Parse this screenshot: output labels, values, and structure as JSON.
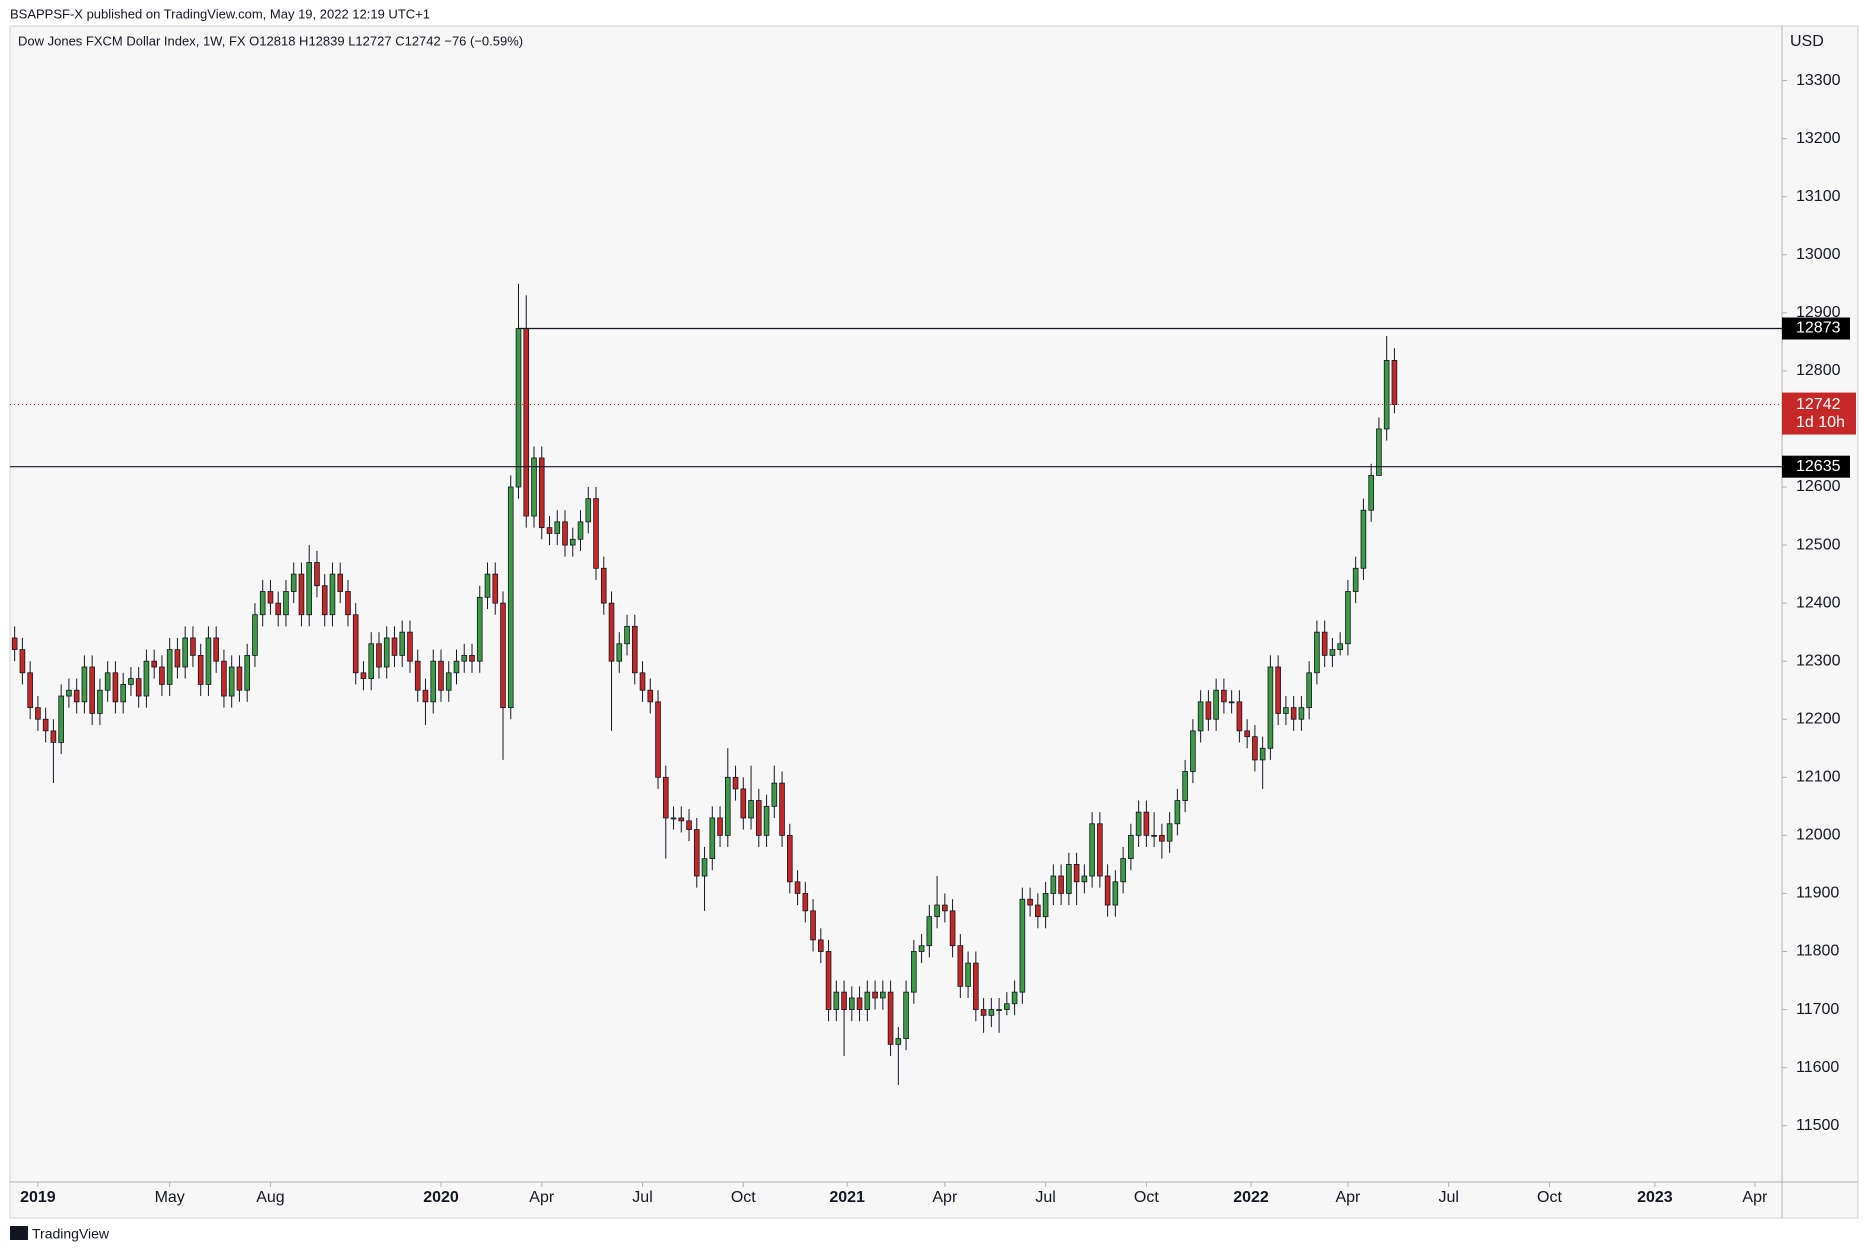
{
  "header": "BSAPPSF-X published on TradingView.com, May 19, 2022 12:19 UTC+1",
  "footer": "TradingView",
  "chart_data": {
    "type": "candlestick",
    "title": "Dow Jones FXCM Dollar Index, 1W, FX  O12818  H12839  L12727  C12742  −76 (−0.59%)",
    "y_axis_label": "USD",
    "countdown": "1d 10h",
    "up_color": "#3d9a45",
    "down_color": "#c62828",
    "open": [
      12340,
      12320,
      12280,
      12220,
      12200,
      12180,
      12160,
      12240,
      12250,
      12230,
      12290,
      12210,
      12250,
      12280,
      12230,
      12260,
      12270,
      12240,
      12300,
      12290,
      12260,
      12320,
      12290,
      12340,
      12310,
      12260,
      12340,
      12300,
      12240,
      12290,
      12250,
      12310,
      12380,
      12420,
      12400,
      12380,
      12420,
      12450,
      12380,
      12470,
      12430,
      12380,
      12450,
      12420,
      12380,
      12280,
      12270,
      12330,
      12290,
      12340,
      12310,
      12350,
      12300,
      12250,
      12230,
      12300,
      12250,
      12280,
      12300,
      12310,
      12300,
      12410,
      12450,
      12400,
      12220,
      12600,
      12873,
      12550,
      12650,
      12530,
      12520,
      12540,
      12500,
      12510,
      12540,
      12580,
      12460,
      12400,
      12300,
      12330,
      12360,
      12280,
      12250,
      12230,
      12100,
      12030,
      12030,
      12025,
      12010,
      11930,
      11960,
      12030,
      12000,
      12100,
      12080,
      12030,
      12060,
      12000,
      12050,
      12090,
      12000,
      11920,
      11900,
      11870,
      11820,
      11800,
      11700,
      11730,
      11700,
      11720,
      11700,
      11730,
      11720,
      11730,
      11640,
      11650,
      11730,
      11800,
      11810,
      11860,
      11880,
      11870,
      11810,
      11740,
      11780,
      11700,
      11690,
      11700,
      11700,
      11710,
      11730,
      11890,
      11880,
      11860,
      11900,
      11930,
      11900,
      11950,
      11920,
      11930,
      12020,
      11930,
      11880,
      11920,
      11960,
      12000,
      12040,
      12000,
      12000,
      11990,
      12020,
      12060,
      12110,
      12180,
      12230,
      12200,
      12250,
      12230,
      12230,
      12180,
      12170,
      12130,
      12150,
      12290,
      12210,
      12220,
      12200,
      12220,
      12280,
      12350,
      12310,
      12320,
      12330,
      12420,
      12460,
      12560,
      12620,
      12700,
      12818
    ],
    "high": [
      12360,
      12340,
      12300,
      12240,
      12220,
      12200,
      12260,
      12270,
      12270,
      12310,
      12310,
      12270,
      12300,
      12300,
      12280,
      12290,
      12290,
      12320,
      12320,
      12310,
      12340,
      12340,
      12360,
      12360,
      12330,
      12360,
      12360,
      12320,
      12310,
      12310,
      12330,
      12400,
      12440,
      12440,
      12420,
      12440,
      12470,
      12470,
      12500,
      12490,
      12450,
      12470,
      12470,
      12440,
      12400,
      12300,
      12350,
      12350,
      12360,
      12360,
      12370,
      12370,
      12320,
      12270,
      12320,
      12320,
      12300,
      12320,
      12330,
      12330,
      12430,
      12470,
      12470,
      12420,
      12620,
      12950,
      12930,
      12670,
      12670,
      12550,
      12560,
      12560,
      12530,
      12560,
      12600,
      12600,
      12480,
      12420,
      12350,
      12380,
      12380,
      12300,
      12270,
      12250,
      12120,
      12050,
      12050,
      12045,
      12030,
      11980,
      12050,
      12050,
      12150,
      12120,
      12100,
      12120,
      12080,
      12070,
      12120,
      12110,
      12020,
      11940,
      11920,
      11890,
      11840,
      11820,
      11750,
      11750,
      11740,
      11740,
      11750,
      11750,
      11750,
      11750,
      11670,
      11750,
      11820,
      11830,
      11880,
      11930,
      11900,
      11890,
      11830,
      11800,
      11800,
      11720,
      11720,
      11720,
      11730,
      11750,
      11910,
      11910,
      11900,
      11920,
      11950,
      11950,
      11970,
      11970,
      11950,
      12040,
      12040,
      11950,
      11940,
      11980,
      12020,
      12060,
      12060,
      12040,
      12020,
      12040,
      12080,
      12130,
      12200,
      12250,
      12250,
      12270,
      12270,
      12250,
      12250,
      12200,
      12190,
      12170,
      12310,
      12310,
      12240,
      12240,
      12240,
      12300,
      12370,
      12370,
      12340,
      12350,
      12440,
      12480,
      12580,
      12640,
      12720,
      12860,
      12839
    ],
    "low": [
      12300,
      12260,
      12200,
      12180,
      12160,
      12090,
      12140,
      12220,
      12210,
      12210,
      12190,
      12190,
      12230,
      12210,
      12210,
      12240,
      12220,
      12220,
      12270,
      12240,
      12240,
      12270,
      12270,
      12290,
      12240,
      12240,
      12280,
      12220,
      12220,
      12230,
      12230,
      12290,
      12360,
      12380,
      12360,
      12360,
      12400,
      12360,
      12360,
      12410,
      12360,
      12360,
      12400,
      12360,
      12260,
      12250,
      12250,
      12270,
      12270,
      12290,
      12290,
      12280,
      12230,
      12190,
      12210,
      12230,
      12230,
      12260,
      12280,
      12280,
      12280,
      12390,
      12380,
      12130,
      12200,
      12580,
      12530,
      12530,
      12510,
      12500,
      12500,
      12480,
      12480,
      12490,
      12520,
      12440,
      12380,
      12180,
      12280,
      12310,
      12260,
      12230,
      12210,
      12080,
      11960,
      12010,
      12005,
      11990,
      11910,
      11870,
      11940,
      11980,
      11980,
      12060,
      12010,
      12010,
      11980,
      11980,
      12030,
      11980,
      11900,
      11880,
      11850,
      11800,
      11780,
      11680,
      11680,
      11620,
      11680,
      11680,
      11680,
      11700,
      11700,
      11620,
      11570,
      11630,
      11710,
      11780,
      11790,
      11840,
      11850,
      11790,
      11720,
      11720,
      11680,
      11660,
      11670,
      11660,
      11690,
      11690,
      11710,
      11860,
      11840,
      11840,
      11880,
      11880,
      11880,
      11880,
      11900,
      11910,
      11910,
      11860,
      11860,
      11900,
      11940,
      11980,
      11980,
      11980,
      11960,
      11970,
      12000,
      12040,
      12090,
      12160,
      12180,
      12180,
      12210,
      12210,
      12160,
      12150,
      12110,
      12080,
      12130,
      12190,
      12190,
      12180,
      12180,
      12200,
      12260,
      12290,
      12290,
      12310,
      12310,
      12400,
      12440,
      12540,
      12630,
      12680,
      12727
    ],
    "close": [
      12320,
      12280,
      12220,
      12200,
      12180,
      12160,
      12240,
      12250,
      12230,
      12290,
      12210,
      12250,
      12280,
      12230,
      12260,
      12270,
      12240,
      12300,
      12290,
      12260,
      12320,
      12290,
      12340,
      12310,
      12260,
      12340,
      12300,
      12240,
      12290,
      12250,
      12310,
      12380,
      12420,
      12400,
      12380,
      12420,
      12450,
      12380,
      12470,
      12430,
      12380,
      12450,
      12420,
      12380,
      12280,
      12270,
      12330,
      12290,
      12340,
      12310,
      12350,
      12300,
      12250,
      12230,
      12300,
      12250,
      12280,
      12300,
      12310,
      12300,
      12410,
      12450,
      12400,
      12220,
      12600,
      12873,
      12550,
      12650,
      12530,
      12520,
      12540,
      12500,
      12510,
      12540,
      12580,
      12460,
      12400,
      12300,
      12330,
      12360,
      12280,
      12250,
      12230,
      12100,
      12030,
      12030,
      12025,
      12010,
      11930,
      11960,
      12030,
      12000,
      12100,
      12080,
      12030,
      12060,
      12000,
      12050,
      12090,
      12000,
      11920,
      11900,
      11870,
      11820,
      11800,
      11700,
      11730,
      11700,
      11720,
      11700,
      11730,
      11720,
      11730,
      11640,
      11650,
      11730,
      11800,
      11810,
      11860,
      11880,
      11870,
      11810,
      11740,
      11780,
      11700,
      11690,
      11700,
      11700,
      11710,
      11730,
      11890,
      11880,
      11860,
      11900,
      11930,
      11900,
      11950,
      11920,
      11930,
      12020,
      11930,
      11880,
      11920,
      11960,
      12000,
      12040,
      12000,
      12000,
      11990,
      12020,
      12060,
      12110,
      12180,
      12230,
      12200,
      12250,
      12230,
      12230,
      12180,
      12170,
      12130,
      12150,
      12290,
      12210,
      12220,
      12200,
      12220,
      12280,
      12350,
      12310,
      12320,
      12330,
      12420,
      12460,
      12560,
      12620,
      12700,
      12818,
      12742
    ],
    "hlines": [
      12873,
      12635
    ],
    "xlim": [
      -0.6,
      228
    ],
    "xticks": [
      {
        "value": 3,
        "label": "2019"
      },
      {
        "value": 20,
        "label": "May"
      },
      {
        "value": 33,
        "label": "Aug"
      },
      {
        "value": 55,
        "label": "2020"
      },
      {
        "value": 68,
        "label": "Apr"
      },
      {
        "value": 81,
        "label": "Jul"
      },
      {
        "value": 94,
        "label": "Oct"
      },
      {
        "value": 107.4,
        "label": "2021"
      },
      {
        "value": 120,
        "label": "Apr"
      },
      {
        "value": 133,
        "label": "Jul"
      },
      {
        "value": 146,
        "label": "Oct"
      },
      {
        "value": 159.5,
        "label": "2022"
      },
      {
        "value": 172,
        "label": "Apr"
      },
      {
        "value": 185,
        "label": "Jul"
      },
      {
        "value": 198,
        "label": "Oct"
      },
      {
        "value": 211.6,
        "label": "2023"
      },
      {
        "value": 224.5,
        "label": "Apr"
      }
    ],
    "ylim": [
      11403,
      13394
    ],
    "yticks": [
      11500,
      11600,
      11700,
      11800,
      11900,
      12000,
      12100,
      12200,
      12300,
      12400,
      12500,
      12600,
      12700,
      12800,
      12900,
      13000,
      13100,
      13200,
      13300
    ]
  }
}
